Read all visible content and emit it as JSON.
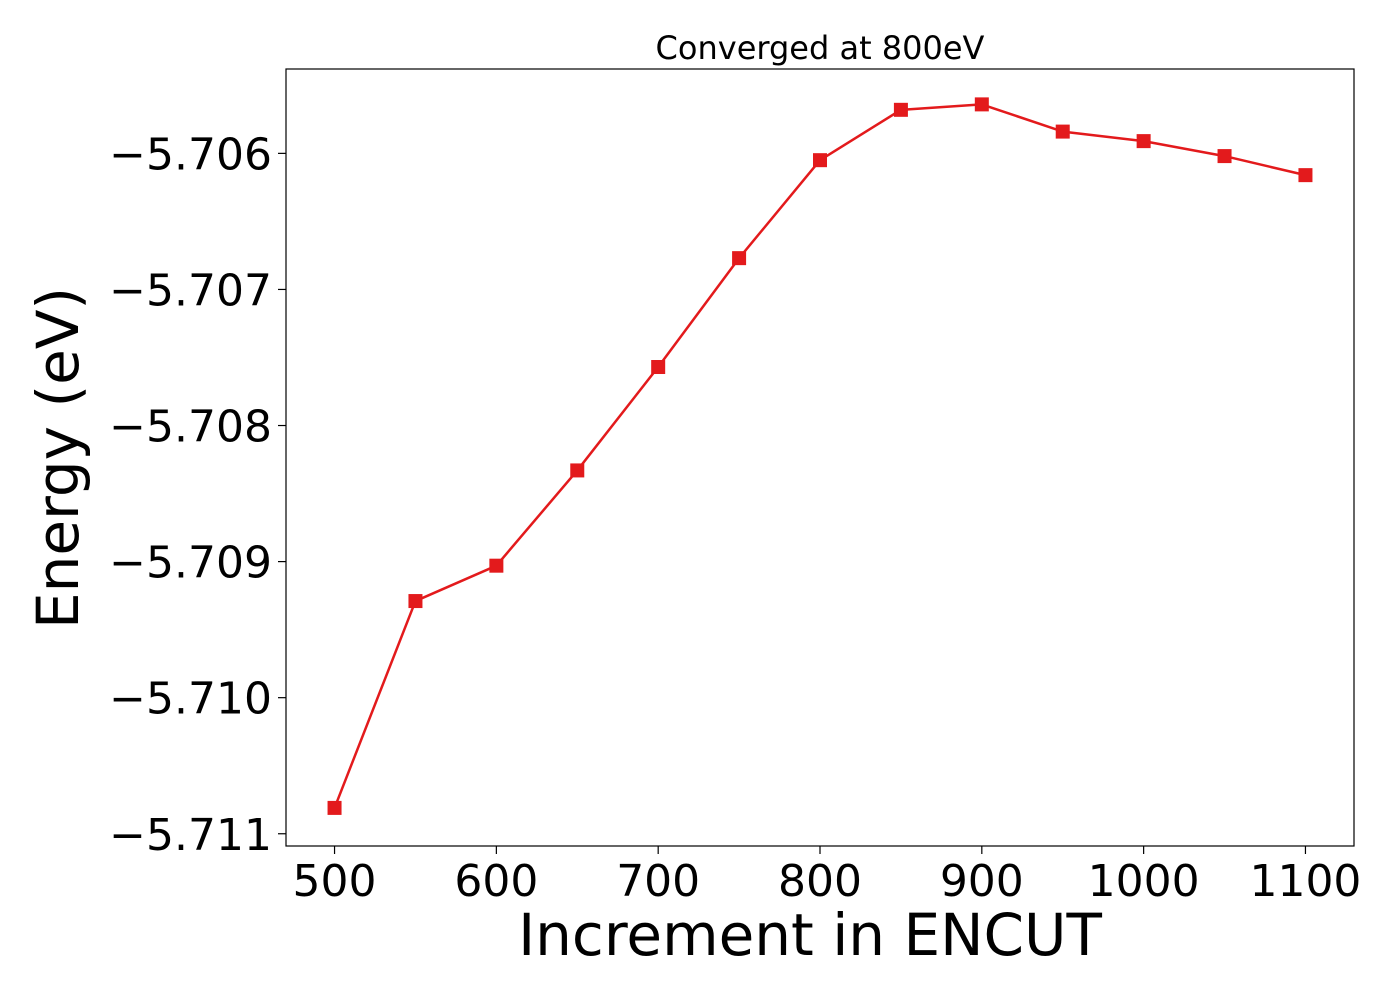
{
  "chart_data": {
    "type": "line",
    "title": "Converged at 800eV",
    "xlabel": "Increment in ENCUT",
    "ylabel": "Energy (eV)",
    "xlim": [
      470,
      1130
    ],
    "ylim": [
      -5.71109,
      -5.70538
    ],
    "xticks": [
      500,
      600,
      700,
      800,
      900,
      1000,
      1100
    ],
    "xtick_labels": [
      "500",
      "600",
      "700",
      "800",
      "900",
      "1000",
      "1100"
    ],
    "yticks": [
      -5.711,
      -5.71,
      -5.709,
      -5.708,
      -5.707,
      -5.706
    ],
    "ytick_labels": [
      "−5.711",
      "−5.710",
      "−5.709",
      "−5.708",
      "−5.707",
      "−5.706"
    ],
    "grid": false,
    "series": [
      {
        "color": "#e31a1c",
        "marker": "square",
        "x": [
          500,
          550,
          600,
          650,
          700,
          750,
          800,
          850,
          900,
          950,
          1000,
          1050,
          1100
        ],
        "y": [
          -5.71081,
          -5.70929,
          -5.70903,
          -5.70833,
          -5.70757,
          -5.70677,
          -5.70605,
          -5.70568,
          -5.70564,
          -5.70584,
          -5.70591,
          -5.70602,
          -5.70616
        ]
      }
    ]
  }
}
